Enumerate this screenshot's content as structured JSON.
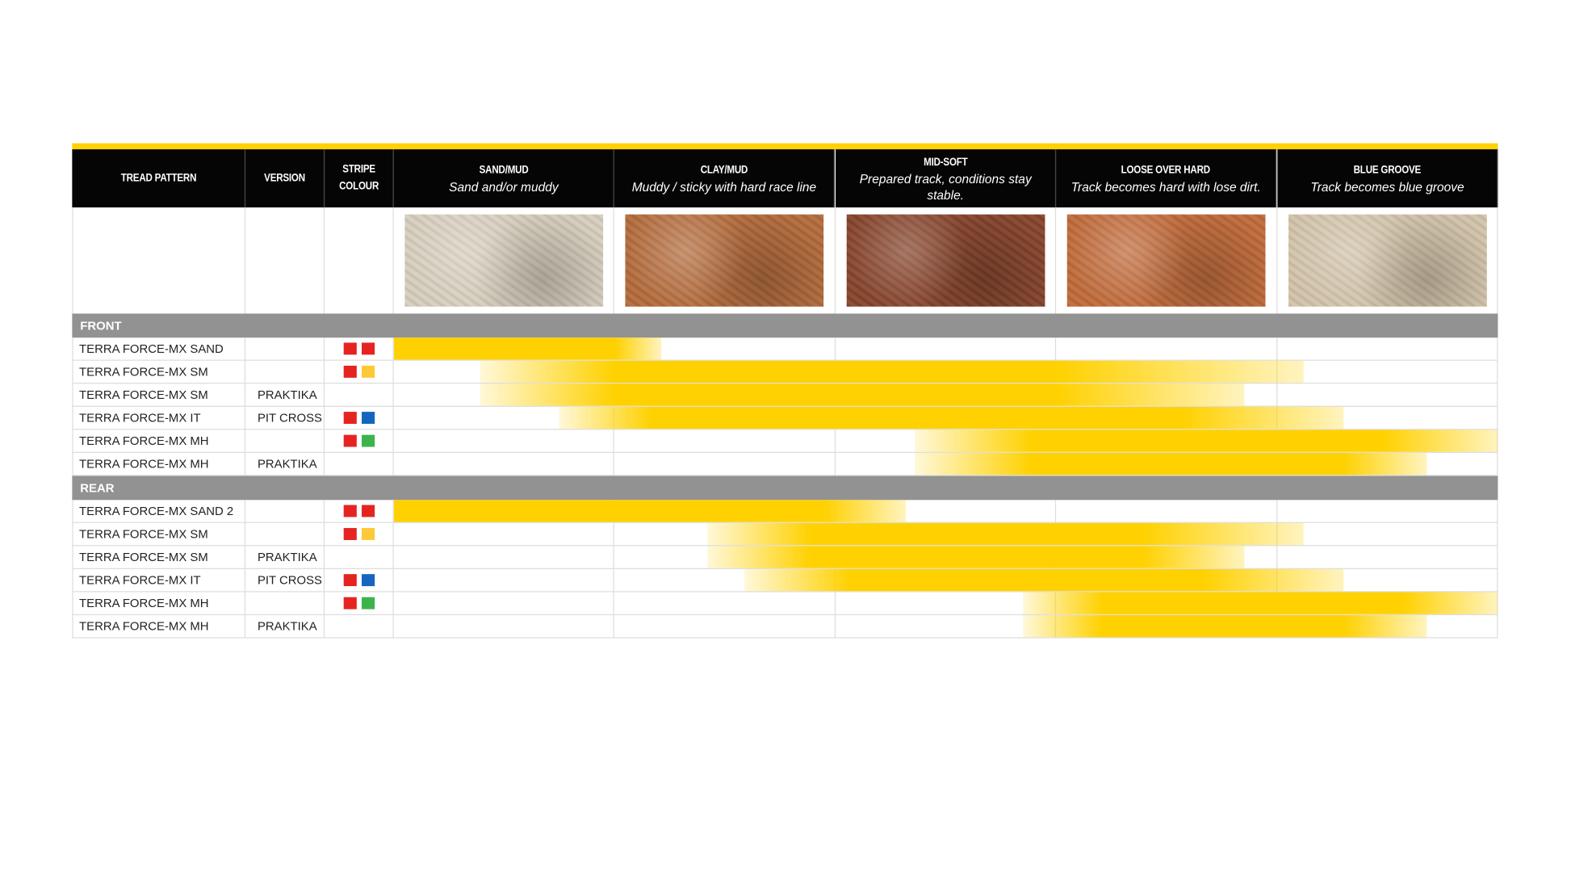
{
  "header": {
    "columns": [
      "TREAD PATTERN",
      "VERSION",
      "STRIPE COLOUR"
    ],
    "terrains": [
      {
        "title": "SAND/MUD",
        "subtitle": "Sand and/or muddy",
        "color": "#d6cdbd"
      },
      {
        "title": "CLAY/MUD",
        "subtitle": "Muddy / sticky with hard race line",
        "color": "#b36b3c"
      },
      {
        "title": "MID-SOFT",
        "subtitle": "Prepared track, conditions stay stable.",
        "color": "#86442c"
      },
      {
        "title": "LOOSE OVER HARD",
        "subtitle": "Track becomes hard with lose dirt.",
        "color": "#c06a3a"
      },
      {
        "title": "BLUE GROOVE",
        "subtitle": "Track becomes blue groove",
        "color": "#d2c3aa"
      }
    ]
  },
  "sections": [
    {
      "label": "FRONT",
      "rows": [
        {
          "pattern": "TERRA FORCE-MX SAND",
          "stripe": [
            "#e52421",
            "#e52421"
          ],
          "range": [
            0,
            0,
            1.0,
            1.21
          ]
        },
        {
          "pattern": "TERRA FORCE-MX SM",
          "stripe": [
            "#e52421",
            "#fcc938"
          ],
          "range": [
            0.39,
            1.0,
            3.0,
            4.12
          ]
        },
        {
          "pattern": "TERRA FORCE-MX SM",
          "version": "PRAKTIKA",
          "range": [
            0.39,
            1.0,
            3.0,
            3.85
          ]
        },
        {
          "pattern": "TERRA FORCE-MX IT",
          "version": "PIT CROSS",
          "stripe": [
            "#e52421",
            "#1565c0"
          ],
          "range": [
            0.75,
            1.17,
            3.57,
            4.3
          ]
        },
        {
          "pattern": "TERRA FORCE-MX MH",
          "stripe": [
            "#e52421",
            "#3cb44b"
          ],
          "range": [
            2.36,
            2.89,
            4.48,
            5.0
          ]
        },
        {
          "pattern": "TERRA FORCE-MX MH",
          "version": "PRAKTIKA",
          "range": [
            2.36,
            2.89,
            4.3,
            4.68
          ]
        }
      ]
    },
    {
      "label": "REAR",
      "rows": [
        {
          "pattern": "TERRA FORCE-MX SAND 2",
          "stripe": [
            "#e52421",
            "#e52421"
          ],
          "range": [
            0,
            0,
            1.95,
            2.32
          ]
        },
        {
          "pattern": "TERRA FORCE-MX SM",
          "stripe": [
            "#e52421",
            "#fcc938"
          ],
          "range": [
            1.42,
            1.89,
            3.39,
            4.12
          ]
        },
        {
          "pattern": "TERRA FORCE-MX SM",
          "version": "PRAKTIKA",
          "range": [
            1.42,
            1.89,
            3.39,
            3.85
          ]
        },
        {
          "pattern": "TERRA FORCE-MX IT",
          "version": "PIT CROSS",
          "stripe": [
            "#e52421",
            "#1565c0"
          ],
          "range": [
            1.59,
            2.07,
            3.66,
            4.3
          ]
        },
        {
          "pattern": "TERRA FORCE-MX MH",
          "stripe": [
            "#e52421",
            "#3cb44b"
          ],
          "range": [
            2.85,
            3.21,
            4.57,
            5.0
          ]
        },
        {
          "pattern": "TERRA FORCE-MX MH",
          "version": "PRAKTIKA",
          "range": [
            2.85,
            3.21,
            4.3,
            4.68
          ]
        }
      ]
    }
  ]
}
